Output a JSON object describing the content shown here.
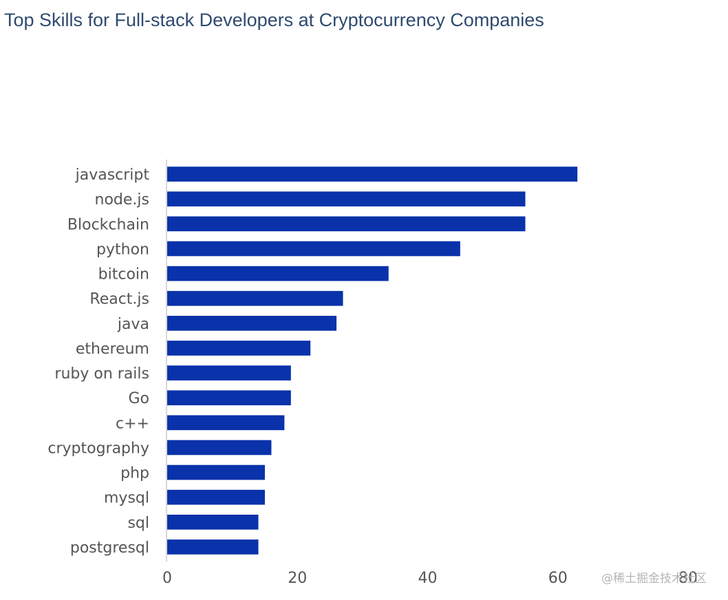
{
  "title": "Top Skills for Full-stack Developers at Cryptocurrency Companies",
  "watermark": "@稀土掘金技术社区",
  "colors": {
    "bar": "#0a32aa",
    "axis": "#cccccc",
    "title": "#2f4a6f",
    "label": "#555555"
  },
  "chart_data": {
    "type": "bar",
    "orientation": "horizontal",
    "title": "Top Skills for Full-stack Developers at Cryptocurrency Companies",
    "categories": [
      "javascript",
      "node.js",
      "Blockchain",
      "python",
      "bitcoin",
      "React.js",
      "java",
      "ethereum",
      "ruby on rails",
      "Go",
      "c++",
      "cryptography",
      "php",
      "mysql",
      "sql",
      "postgresql"
    ],
    "values": [
      63,
      55,
      55,
      45,
      34,
      27,
      26,
      22,
      19,
      19,
      18,
      16,
      15,
      15,
      14,
      14
    ],
    "xlim": [
      0,
      80
    ],
    "xticks": [
      "0",
      "20",
      "40",
      "60",
      "80"
    ],
    "xlabel": "",
    "ylabel": "",
    "grid": false,
    "legend": "none"
  }
}
